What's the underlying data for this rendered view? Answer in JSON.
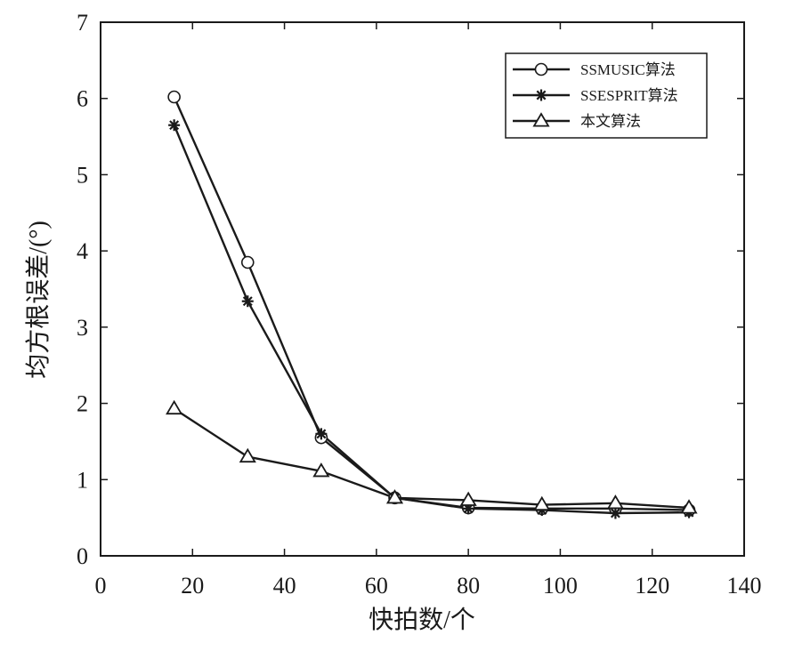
{
  "chart_data": {
    "type": "line",
    "xlabel": "快拍数/个",
    "ylabel": "均方根误差/(°)",
    "xlim": [
      0,
      140
    ],
    "ylim": [
      0,
      7
    ],
    "xticks": [
      0,
      20,
      40,
      60,
      80,
      100,
      120,
      140
    ],
    "yticks": [
      0,
      1,
      2,
      3,
      4,
      5,
      6,
      7
    ],
    "grid": false,
    "legend_position": "top-right",
    "x": [
      16,
      32,
      48,
      64,
      80,
      96,
      112,
      128
    ],
    "series": [
      {
        "name": "SSMUSIC算法",
        "marker": "circle",
        "values": [
          6.02,
          3.85,
          1.55,
          0.76,
          0.63,
          0.62,
          0.62,
          0.6
        ]
      },
      {
        "name": "SSESPRIT算法",
        "marker": "star",
        "values": [
          5.65,
          3.34,
          1.6,
          0.76,
          0.62,
          0.6,
          0.56,
          0.57
        ]
      },
      {
        "name": "本文算法",
        "marker": "triangle",
        "values": [
          1.93,
          1.3,
          1.11,
          0.76,
          0.73,
          0.67,
          0.69,
          0.63
        ]
      }
    ],
    "colors": {
      "line": "#1a1a1a",
      "background": "#ffffff"
    }
  }
}
